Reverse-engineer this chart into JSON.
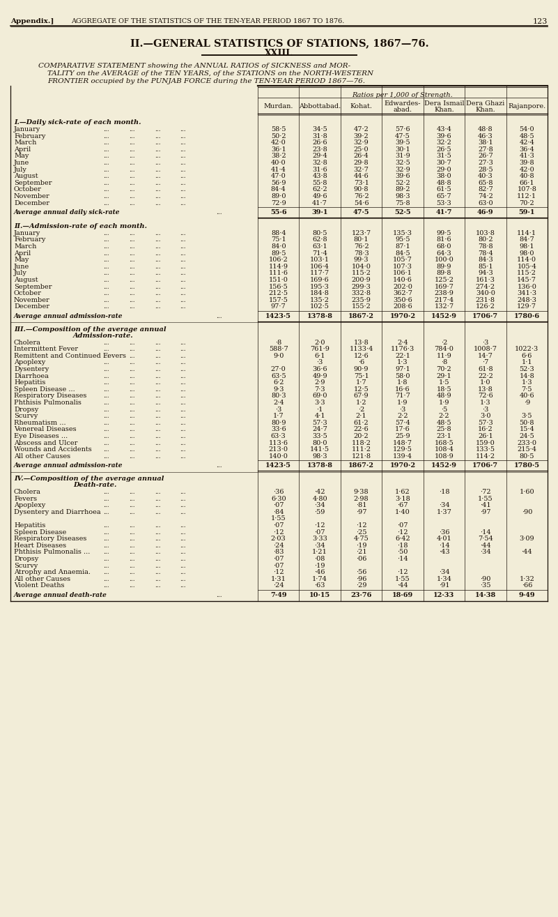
{
  "bg_color": "#f2edd8",
  "section1_title_line1": "I.—Daily sick-rate of each month.",
  "section2_title_line1": "II.—Admission-rate of each month.",
  "section3_title_line1": "III.—Composition of the average annual",
  "section3_title_line2": "Admission-rate.",
  "section4_title_line1": "IV.—Composition of the average annual",
  "section4_title_line2": "Death-rate.",
  "col_headers": [
    "Murdan.",
    "Abbottabad.",
    "Kohat.",
    "Edwardes-\nabad.",
    "Dera Ismail\nKhan.",
    "Dera Ghazi\nKhan.",
    "Rajanpore."
  ],
  "section1_rows": [
    [
      "January",
      "58·5",
      "34·5",
      "47·2",
      "57·6",
      "43·4",
      "48·8",
      "54·0"
    ],
    [
      "February",
      "50·2",
      "31·8",
      "39·2",
      "47·5",
      "39·6",
      "46·3",
      "48·5"
    ],
    [
      "March",
      "42·0",
      "26·6",
      "32·9",
      "39·5",
      "32·2",
      "38·1",
      "42·4"
    ],
    [
      "April",
      "36·1",
      "23·8",
      "25·0",
      "30·1",
      "26·5",
      "27·8",
      "36·4"
    ],
    [
      "May",
      "38·2",
      "29·4",
      "26·4",
      "31·9",
      "31·5",
      "26·7",
      "41·3"
    ],
    [
      "June",
      "40·0",
      "32·8",
      "29·8",
      "32·5",
      "30·7",
      "27·3",
      "39·8"
    ],
    [
      "July",
      "41·4",
      "31·6",
      "32·7",
      "32·9",
      "29·0",
      "28·5",
      "42·0"
    ],
    [
      "August",
      "47·0",
      "43·8",
      "44·6",
      "39·6",
      "38·0",
      "40·3",
      "40·8"
    ],
    [
      "September",
      "56·9",
      "55·8",
      "73·1",
      "52·2",
      "48·8",
      "65·8",
      "66·1"
    ],
    [
      "October",
      "84·4",
      "62·2",
      "90·8",
      "89·2",
      "61·5",
      "82·7",
      "107·8"
    ],
    [
      "November",
      "89·0",
      "49·6",
      "76·2",
      "98·3",
      "65·7",
      "74·2",
      "112·1"
    ],
    [
      "December",
      "72·9",
      "41·7",
      "54·6",
      "75·8",
      "53·3",
      "63·0",
      "70·2"
    ]
  ],
  "section1_avg": [
    "55·6",
    "39·1",
    "47·5",
    "52·5",
    "41·7",
    "46·9",
    "59·1"
  ],
  "section2_rows": [
    [
      "January",
      "88·4",
      "80·5",
      "123·7",
      "135·3",
      "99·5",
      "103·8",
      "114·1"
    ],
    [
      "February",
      "75·1",
      "62·8",
      "80·1",
      "95·5",
      "81·6",
      "80·2",
      "84·7"
    ],
    [
      "March",
      "84·0",
      "63·1",
      "76·2",
      "87·1",
      "68·0",
      "78·8",
      "98·1"
    ],
    [
      "April",
      "89·5",
      "71·4",
      "78·3",
      "84·5",
      "64·3",
      "78·4",
      "98·0"
    ],
    [
      "May",
      "106·2",
      "103·1",
      "99·3",
      "105·7",
      "100·0",
      "84·3",
      "114·0"
    ],
    [
      "June",
      "114·9",
      "106·4",
      "104·0",
      "107·3",
      "89·9",
      "85·1",
      "105·4"
    ],
    [
      "July",
      "111·6",
      "117·7",
      "115·2",
      "106·1",
      "89·8",
      "94·3",
      "115·2"
    ],
    [
      "August",
      "151·0",
      "169·6",
      "200·9",
      "140·6",
      "125·2",
      "161·3",
      "145·7"
    ],
    [
      "September",
      "156·5",
      "195·3",
      "299·3",
      "202·0",
      "169·7",
      "274·2",
      "136·0"
    ],
    [
      "October",
      "212·5",
      "184·8",
      "332·8",
      "362·7",
      "238·9",
      "340·0",
      "341·3"
    ],
    [
      "November",
      "157·5",
      "135·2",
      "235·9",
      "350·6",
      "217·4",
      "231·8",
      "248·3"
    ],
    [
      "December",
      "97·7",
      "102·5",
      "155·2",
      "208·6",
      "132·7",
      "126·2",
      "129·7"
    ]
  ],
  "section2_avg": [
    "1423·5",
    "1378·8",
    "1867·2",
    "1970·2",
    "1452·9",
    "1706·7",
    "1780·6"
  ],
  "section3_rows": [
    [
      "Cholera",
      "·8",
      "2·0",
      "13·8",
      "2·4",
      "·2",
      "·3",
      ""
    ],
    [
      "Intermittent Fever",
      "588·7",
      "761·9",
      "1133·4",
      "1176·3",
      "784·0",
      "1008·7",
      "1022·3"
    ],
    [
      "Remittent and Continued Fevers",
      "9·0",
      "6·1",
      "12·6",
      "22·1",
      "11·9",
      "14·7",
      "6·6"
    ],
    [
      "Apoplexy",
      "",
      "·3",
      "·6",
      "1·3",
      "·8",
      "·7",
      "1·1"
    ],
    [
      "Dysentery",
      "27·0",
      "36·6",
      "90·9",
      "97·1",
      "70·2",
      "61·8",
      "52·3"
    ],
    [
      "Diarrhoea",
      "63·5",
      "49·9",
      "75·1",
      "58·0",
      "29·1",
      "22·2",
      "14·8"
    ],
    [
      "Hepatitis",
      "6·2",
      "2·9",
      "1·7",
      "1·8",
      "1·5",
      "1·0",
      "1·3"
    ],
    [
      "Spleen Disease ...",
      "9·3",
      "7·3",
      "12·5",
      "16·6",
      "18·5",
      "13·8",
      "7·5"
    ],
    [
      "Respiratory Diseases",
      "80·3",
      "69·0",
      "67·9",
      "71·7",
      "48·9",
      "72·6",
      "40·6"
    ],
    [
      "Phthisis Pulmonalis",
      "2·4",
      "3·3",
      "1·2",
      "1·9",
      "1·9",
      "1·3",
      "·9"
    ],
    [
      "Dropsy",
      "·3",
      "·1",
      "·2",
      "·3",
      "·5",
      "·3",
      ""
    ],
    [
      "Scurvy",
      "1·7",
      "4·1",
      "2·1",
      "2·2",
      "2·2",
      "3·0",
      "3·5"
    ],
    [
      "Rheumatism ...",
      "80·9",
      "57·3",
      "61·2",
      "57·4",
      "48·5",
      "57·3",
      "50·8"
    ],
    [
      "Venereal Diseases",
      "33·6",
      "24·7",
      "22·6",
      "17·6",
      "25·8",
      "16·2",
      "15·4"
    ],
    [
      "Eye Diseases ...",
      "63·3",
      "33·5",
      "20·2",
      "25·9",
      "23·1",
      "26·1",
      "24·5"
    ],
    [
      "Abscess and Ulcer",
      "113·6",
      "80·0",
      "118·2",
      "148·7",
      "168·5",
      "159·0",
      "233·0"
    ],
    [
      "Wounds and Accidents",
      "213·0",
      "141·5",
      "111·2",
      "129·5",
      "108·4",
      "133·5",
      "215·4"
    ],
    [
      "All other Causes",
      "140·0",
      "98·3",
      "121·8",
      "139·4",
      "108·9",
      "114·2",
      "80·5"
    ]
  ],
  "section3_avg": [
    "1423·5",
    "1378·8",
    "1867·2",
    "1970·2",
    "1452·9",
    "1706·7",
    "1780·5"
  ],
  "section4_rows": [
    [
      "Cholera",
      "·36",
      "·42",
      "9·38",
      "1·62",
      "·18",
      "·72",
      "1·60"
    ],
    [
      "Fevers",
      "6·30",
      "4·80",
      "2·98",
      "3·18",
      "",
      "1·55",
      ""
    ],
    [
      "Apoplexy",
      "·07",
      "·34",
      "·81",
      "·67",
      "·34",
      "·41",
      ""
    ],
    [
      "Dysentery and Diarrhoea",
      "·84",
      "·59",
      "·97",
      "1·40",
      "1·37",
      "·97",
      "·90"
    ],
    [
      "",
      "1·55",
      "",
      "",
      "",
      "",
      "",
      ""
    ],
    [
      "Hepatitis",
      "·07",
      "·12",
      "·12",
      "·07",
      "",
      "",
      ""
    ],
    [
      "Spleen Disease",
      "·12",
      "·07",
      "·25",
      "·12",
      "·36",
      "·14",
      ""
    ],
    [
      "Respiratory Diseases",
      "2·03",
      "3·33",
      "4·75",
      "6·42",
      "4·01",
      "7·54",
      "3·09"
    ],
    [
      "Heart Diseases",
      "·24",
      "·34",
      "·19",
      "·18",
      "·14",
      "·44",
      ""
    ],
    [
      "Phthisis Pulmonalis ...",
      "·83",
      "1·21",
      "·21",
      "·50",
      "·43",
      "·34",
      "·44"
    ],
    [
      "Dropsy",
      "·07",
      "·08",
      "·06",
      "·14",
      "",
      "",
      ""
    ],
    [
      "Scurvy",
      "·07",
      "·19",
      "",
      "",
      "",
      "",
      ""
    ],
    [
      "Atrophy and Anaemia.",
      "·12",
      "·46",
      "·56",
      "·12",
      "·34",
      "",
      ""
    ],
    [
      "All other Causes",
      "1·31",
      "1·74",
      "·96",
      "1·55",
      "1·34",
      "·90",
      "1·32"
    ],
    [
      "Violent Deaths",
      "·24",
      "·63",
      "·29",
      "·44",
      "·91",
      "·35",
      "·66"
    ]
  ],
  "section4_avg": [
    "7·49",
    "10·15",
    "23·76",
    "18·69",
    "12·33",
    "14·38",
    "9·49"
  ]
}
